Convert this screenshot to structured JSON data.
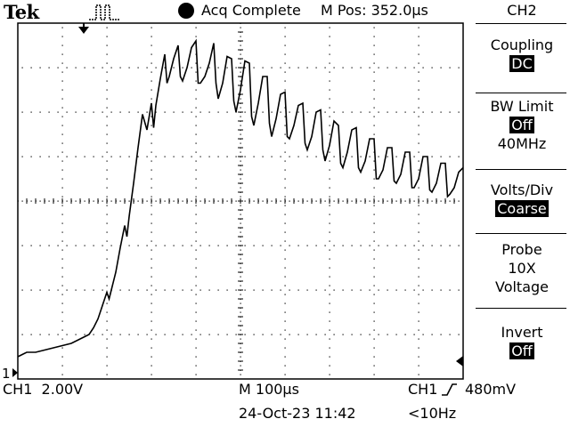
{
  "header": {
    "brand": "Tek",
    "trigger_status_icon": "trigger-pulse-icon",
    "acquisition_status": "Acq Complete",
    "horizontal_position": "M Pos: 352.0µs"
  },
  "side_menu": {
    "channel": "CH2",
    "coupling_label": "Coupling",
    "coupling_value": "DC",
    "bw_limit_label": "BW Limit",
    "bw_limit_value": "Off",
    "bw_limit_freq": "40MHz",
    "volts_div_label": "Volts/Div",
    "volts_div_value": "Coarse",
    "probe_label": "Probe",
    "probe_atten": "10X",
    "probe_type": "Voltage",
    "invert_label": "Invert",
    "invert_value": "Off"
  },
  "status_bar": {
    "ch1_scale": "CH1  2.00V",
    "timebase": "M 100µs",
    "trigger_source": "CH1",
    "trigger_level": "480mV",
    "date_time": "24-Oct-23 11:42",
    "trigger_frequency": "<10Hz"
  },
  "display": {
    "ch1_ground_marker": "1",
    "trace_color": "#000000",
    "graticule_color": "#000000"
  },
  "chart_data": {
    "type": "line",
    "title": "",
    "xlabel": "",
    "ylabel": "",
    "x_unit": "divisions",
    "y_unit": "V",
    "xlim": [
      0,
      10
    ],
    "ylim": [
      -1.0,
      15.0
    ],
    "series": [
      {
        "name": "",
        "x": [
          0.0,
          0.1,
          0.2,
          0.4,
          0.6,
          0.8,
          1.0,
          1.2,
          1.4,
          1.5,
          1.6,
          1.7,
          1.8,
          1.9,
          2.0,
          2.05,
          2.1,
          2.2,
          2.3,
          2.4,
          2.45,
          2.5,
          2.6,
          2.7,
          2.8,
          2.9,
          3.0,
          3.05,
          3.1,
          3.2,
          3.3,
          3.35,
          3.4,
          3.5,
          3.6,
          3.65,
          3.7,
          3.8,
          3.9,
          4.0,
          4.05,
          4.1,
          4.2,
          4.3,
          4.4,
          4.45,
          4.5,
          4.6,
          4.7,
          4.8,
          4.85,
          4.9,
          5.0,
          5.1,
          5.2,
          5.25,
          5.3,
          5.4,
          5.5,
          5.6,
          5.65,
          5.7,
          5.8,
          5.9,
          6.0,
          6.05,
          6.1,
          6.2,
          6.3,
          6.4,
          6.45,
          6.5,
          6.6,
          6.7,
          6.8,
          6.85,
          6.9,
          7.0,
          7.1,
          7.2,
          7.25,
          7.3,
          7.4,
          7.5,
          7.6,
          7.65,
          7.7,
          7.8,
          7.9,
          8.0,
          8.05,
          8.1,
          8.2,
          8.3,
          8.4,
          8.45,
          8.5,
          8.6,
          8.7,
          8.8,
          8.85,
          8.9,
          9.0,
          9.1,
          9.2,
          9.25,
          9.3,
          9.4,
          9.5,
          9.6,
          9.65,
          9.7,
          9.8,
          9.9,
          10.0
        ],
        "values": [
          0.0,
          0.1,
          0.2,
          0.2,
          0.3,
          0.4,
          0.5,
          0.6,
          0.8,
          0.9,
          1.0,
          1.3,
          1.7,
          2.3,
          2.9,
          2.6,
          3.0,
          3.8,
          4.9,
          5.9,
          5.4,
          6.3,
          7.8,
          9.4,
          10.9,
          10.2,
          11.4,
          10.3,
          11.3,
          12.5,
          13.6,
          12.3,
          12.6,
          13.4,
          14.0,
          12.6,
          12.4,
          13.0,
          13.9,
          14.2,
          12.3,
          12.3,
          12.6,
          13.2,
          14.1,
          12.3,
          11.6,
          12.3,
          13.5,
          13.4,
          11.5,
          11.0,
          12.0,
          13.3,
          13.2,
          10.8,
          10.4,
          11.4,
          12.6,
          12.6,
          10.5,
          9.9,
          10.7,
          11.8,
          11.9,
          9.9,
          9.8,
          10.4,
          11.3,
          11.4,
          9.6,
          9.3,
          9.9,
          11.0,
          11.1,
          9.3,
          8.8,
          9.5,
          10.6,
          10.4,
          8.7,
          8.5,
          9.2,
          10.2,
          10.3,
          8.5,
          8.3,
          8.8,
          9.8,
          9.8,
          8.0,
          8.0,
          8.4,
          9.4,
          9.4,
          7.9,
          7.8,
          8.2,
          9.2,
          9.2,
          7.6,
          7.6,
          8.0,
          9.0,
          9.0,
          7.5,
          7.4,
          7.8,
          8.7,
          8.7,
          7.2,
          7.3,
          7.6,
          8.3,
          8.5
        ]
      }
    ],
    "grid": true,
    "ch1_scale_volts_per_div": 2.0
  }
}
